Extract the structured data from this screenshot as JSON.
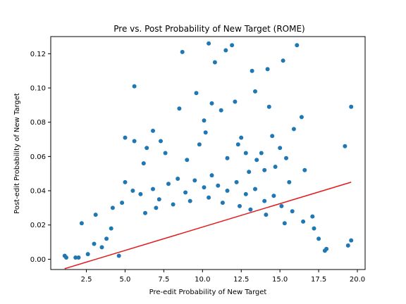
{
  "chart_data": {
    "type": "scatter",
    "title": "Pre vs. Post Probability of New Target (ROME)",
    "xlabel": "Pre-edit Probability of New Target",
    "ylabel": "Post-edit Probability of New Target",
    "xlim": [
      0.2,
      20.5
    ],
    "ylim": [
      -0.006,
      0.13
    ],
    "xticks": [
      2.5,
      5.0,
      7.5,
      10.0,
      12.5,
      15.0,
      17.5,
      20.0
    ],
    "xtick_labels": [
      "2.5",
      "5.0",
      "7.5",
      "10.0",
      "12.5",
      "15.0",
      "17.5",
      "20.0"
    ],
    "yticks": [
      0.0,
      0.02,
      0.04,
      0.06,
      0.08,
      0.1,
      0.12
    ],
    "ytick_labels": [
      "0.00",
      "0.02",
      "0.04",
      "0.06",
      "0.08",
      "0.10",
      "0.12"
    ],
    "grid": false,
    "colors": {
      "points": "#1f77b4",
      "fit_line": "#e31a1c"
    },
    "series": [
      {
        "type": "scatter",
        "points": [
          [
            1.1,
            0.002
          ],
          [
            1.2,
            0.001
          ],
          [
            1.8,
            0.001
          ],
          [
            2.0,
            0.001
          ],
          [
            2.2,
            0.021
          ],
          [
            3.1,
            0.026
          ],
          [
            4.6,
            0.002
          ],
          [
            5.0,
            0.071
          ],
          [
            5.6,
            0.101
          ],
          [
            5.6,
            0.069
          ],
          [
            6.2,
            0.056
          ],
          [
            6.4,
            0.065
          ],
          [
            6.8,
            0.075
          ],
          [
            7.3,
            0.069
          ],
          [
            7.6,
            0.062
          ],
          [
            8.5,
            0.088
          ],
          [
            8.7,
            0.121
          ],
          [
            9.0,
            0.058
          ],
          [
            9.6,
            0.097
          ],
          [
            9.8,
            0.067
          ],
          [
            10.1,
            0.081
          ],
          [
            10.2,
            0.074
          ],
          [
            10.4,
            0.126
          ],
          [
            10.6,
            0.091
          ],
          [
            10.8,
            0.115
          ],
          [
            11.2,
            0.087
          ],
          [
            11.5,
            0.122
          ],
          [
            11.9,
            0.125
          ],
          [
            11.6,
            0.059
          ],
          [
            12.1,
            0.092
          ],
          [
            12.3,
            0.067
          ],
          [
            12.5,
            0.071
          ],
          [
            12.8,
            0.062
          ],
          [
            13.0,
            0.051
          ],
          [
            13.2,
            0.11
          ],
          [
            13.4,
            0.098
          ],
          [
            13.5,
            0.058
          ],
          [
            13.8,
            0.062
          ],
          [
            14.0,
            0.052
          ],
          [
            14.2,
            0.111
          ],
          [
            14.3,
            0.089
          ],
          [
            14.5,
            0.072
          ],
          [
            14.7,
            0.054
          ],
          [
            15.0,
            0.065
          ],
          [
            15.2,
            0.116
          ],
          [
            15.4,
            0.059
          ],
          [
            15.6,
            0.045
          ],
          [
            15.9,
            0.076
          ],
          [
            16.1,
            0.125
          ],
          [
            16.4,
            0.083
          ],
          [
            16.6,
            0.052
          ],
          [
            17.1,
            0.025
          ],
          [
            17.5,
            0.012
          ],
          [
            17.9,
            0.005
          ],
          [
            19.2,
            0.066
          ],
          [
            19.4,
            0.008
          ],
          [
            19.6,
            0.089
          ],
          [
            19.6,
            0.011
          ],
          [
            5.0,
            0.045
          ],
          [
            5.5,
            0.04
          ],
          [
            6.0,
            0.038
          ],
          [
            6.8,
            0.041
          ],
          [
            7.2,
            0.035
          ],
          [
            7.8,
            0.044
          ],
          [
            8.4,
            0.047
          ],
          [
            8.9,
            0.039
          ],
          [
            9.5,
            0.046
          ],
          [
            10.1,
            0.042
          ],
          [
            10.6,
            0.049
          ],
          [
            11.0,
            0.043
          ],
          [
            11.6,
            0.04
          ],
          [
            12.2,
            0.045
          ],
          [
            12.8,
            0.038
          ],
          [
            13.4,
            0.041
          ],
          [
            14.0,
            0.034
          ],
          [
            14.6,
            0.037
          ],
          [
            15.1,
            0.031
          ],
          [
            15.8,
            0.028
          ],
          [
            16.5,
            0.022
          ],
          [
            17.2,
            0.018
          ],
          [
            18.0,
            0.006
          ],
          [
            4.2,
            0.03
          ],
          [
            4.8,
            0.033
          ],
          [
            3.8,
            0.012
          ],
          [
            4.1,
            0.018
          ],
          [
            3.5,
            0.007
          ],
          [
            2.6,
            0.003
          ],
          [
            3.0,
            0.009
          ],
          [
            6.3,
            0.027
          ],
          [
            7.0,
            0.03
          ],
          [
            8.1,
            0.032
          ],
          [
            9.2,
            0.034
          ],
          [
            10.4,
            0.036
          ],
          [
            11.3,
            0.033
          ],
          [
            12.4,
            0.031
          ],
          [
            13.1,
            0.029
          ],
          [
            14.1,
            0.026
          ],
          [
            15.3,
            0.021
          ]
        ]
      }
    ],
    "fit_line": {
      "x": [
        1.1,
        19.6
      ],
      "y": [
        -0.0055,
        0.045
      ]
    }
  }
}
